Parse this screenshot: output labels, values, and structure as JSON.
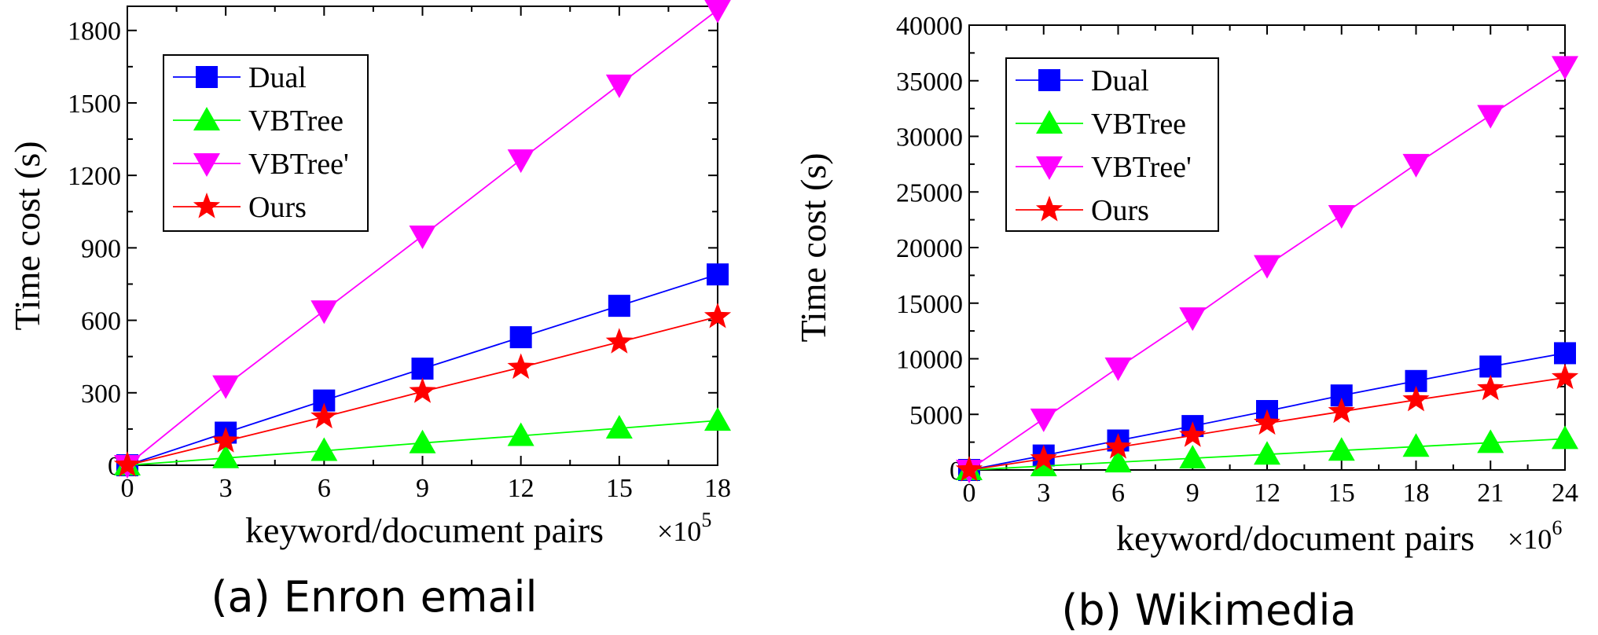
{
  "chart_data": [
    {
      "type": "line",
      "caption": "(a)  Enron email",
      "xlabel": "keyword/document pairs",
      "ylabel": "Time cost (s)",
      "x_multiplier_base": "×10",
      "x_multiplier_exp": "5",
      "x": [
        0,
        3,
        6,
        9,
        12,
        15,
        18
      ],
      "xlim": [
        0,
        18
      ],
      "ylim": [
        0,
        1900
      ],
      "yticks": [
        0,
        300,
        600,
        900,
        1200,
        1500,
        1800
      ],
      "legend_position": "top-left",
      "series": [
        {
          "name": "Dual",
          "color": "#0000ff",
          "marker": "square",
          "values": [
            0,
            135,
            268,
            400,
            530,
            660,
            790
          ]
        },
        {
          "name": "VBTree",
          "color": "#00ff00",
          "marker": "triangle-up",
          "values": [
            0,
            30,
            60,
            92,
            122,
            153,
            185
          ]
        },
        {
          "name": "VBTree'",
          "color": "#ff00ff",
          "marker": "triangle-down",
          "values": [
            0,
            330,
            640,
            950,
            1265,
            1575,
            1885
          ]
        },
        {
          "name": "Ours",
          "color": "#ff0000",
          "marker": "star",
          "values": [
            0,
            100,
            200,
            305,
            405,
            510,
            615
          ]
        }
      ]
    },
    {
      "type": "line",
      "caption": "(b)  Wikimedia",
      "xlabel": "keyword/document pairs",
      "ylabel": "Time cost (s)",
      "x_multiplier_base": "×10",
      "x_multiplier_exp": "6",
      "x": [
        0,
        3,
        6,
        9,
        12,
        15,
        18,
        21,
        24
      ],
      "xlim": [
        0,
        24
      ],
      "ylim": [
        0,
        40000
      ],
      "yticks": [
        0,
        5000,
        10000,
        15000,
        20000,
        25000,
        30000,
        35000,
        40000
      ],
      "legend_position": "top-left",
      "series": [
        {
          "name": "Dual",
          "color": "#0000ff",
          "marker": "square",
          "values": [
            0,
            1300,
            2650,
            3950,
            5300,
            6700,
            8000,
            9300,
            10500
          ]
        },
        {
          "name": "VBTree",
          "color": "#00ff00",
          "marker": "triangle-up",
          "values": [
            0,
            350,
            700,
            1050,
            1400,
            1750,
            2100,
            2450,
            2800
          ]
        },
        {
          "name": "VBTree'",
          "color": "#ff00ff",
          "marker": "triangle-down",
          "values": [
            0,
            4600,
            9200,
            13700,
            18400,
            22900,
            27500,
            31900,
            36300
          ]
        },
        {
          "name": "Ours",
          "color": "#ff0000",
          "marker": "star",
          "values": [
            0,
            1000,
            2050,
            3100,
            4200,
            5250,
            6300,
            7300,
            8300
          ]
        }
      ]
    }
  ]
}
